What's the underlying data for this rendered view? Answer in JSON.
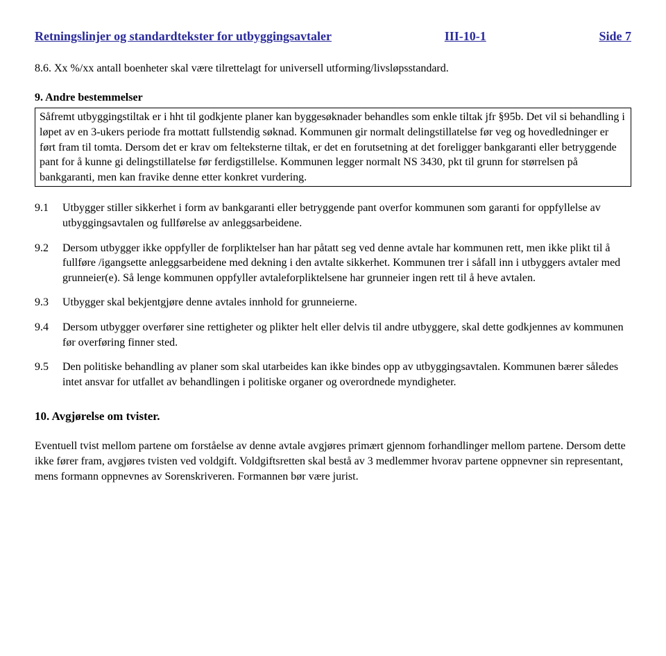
{
  "header": {
    "left": "Retningslinjer og standardtekster for utbyggingsavtaler",
    "center": "III-10-1",
    "right": "Side 7"
  },
  "p86": "8.6.   Xx %/xx antall boenheter skal være tilrettelagt for universell utforming/livsløpsstandard.",
  "s9_heading": "9.   Andre bestemmelser",
  "s9_box": "Såfremt utbyggingstiltak er i hht til godkjente planer kan byggesøknader behandles som enkle tiltak jfr §95b. Det vil si behandling i løpet av en 3-ukers periode fra mottatt fullstendig søknad. Kommunen gir normalt delingstillatelse før veg og hovedledninger er ført fram til tomta. Dersom det er krav om felteksterne tiltak, er det en forutsetning at det  foreligger bankgaranti eller betryggende pant for å kunne gi delingstillatelse før ferdigstillelse. Kommunen legger normalt NS 3430, pkt  til grunn for størrelsen  på bankgaranti, men kan fravike denne etter konkret vurdering.",
  "items": [
    {
      "num": "9.1",
      "txt": "Utbygger stiller sikkerhet i form av bankgaranti eller betryggende pant overfor kommunen som garanti for oppfyllelse av utbyggingsavtalen og fullførelse av anleggsarbeidene."
    },
    {
      "num": "9.2",
      "txt": "Dersom utbygger ikke oppfyller de forpliktelser han har påtatt seg ved denne avtale har kommunen rett, men ikke plikt til å fullføre /igangsette anleggsarbeidene med dekning i den avtalte sikkerhet. Kommunen trer i såfall inn i utbyggers avtaler med grunneier(e). Så lenge kommunen oppfyller avtaleforpliktelsene har grunneier ingen rett til å heve avtalen."
    },
    {
      "num": "9.3",
      "txt": "Utbygger skal bekjentgjøre denne avtales innhold for grunneierne."
    },
    {
      "num": "9.4",
      "txt": "Dersom utbygger overfører sine rettigheter og plikter helt eller delvis til andre utbyggere, skal dette godkjennes av kommunen før overføring finner sted."
    },
    {
      "num": "9.5",
      "txt": "Den politiske behandling av planer som skal utarbeides kan ikke bindes opp av utbyggingsavtalen. Kommunen bærer således intet ansvar for utfallet av behandlingen i politiske organer og overordnede myndigheter."
    }
  ],
  "s10_heading": "10. Avgjørelse om tvister.",
  "s10_body": "Eventuell tvist mellom partene om forståelse av denne avtale avgjøres primært gjennom forhandlinger mellom partene. Dersom dette ikke fører fram, avgjøres tvisten ved voldgift. Voldgiftsretten skal bestå av 3 medlemmer hvorav partene oppnevner sin representant, mens formann oppnevnes av Sorenskriveren.  Formannen bør være jurist."
}
